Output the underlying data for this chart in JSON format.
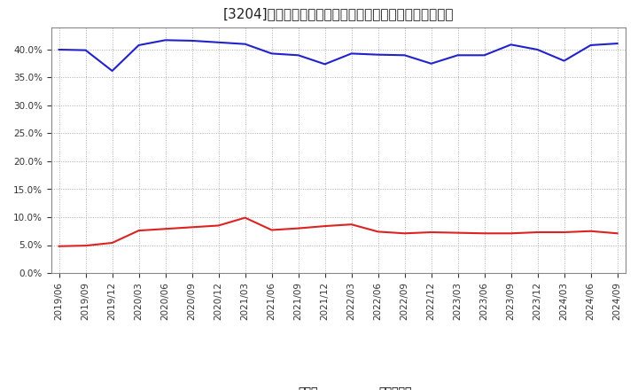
{
  "title": "[3204]　現鄲金、有利子負債の総資産に対する比率の推移",
  "x_labels": [
    "2019/06",
    "2019/09",
    "2019/12",
    "2020/03",
    "2020/06",
    "2020/09",
    "2020/12",
    "2021/03",
    "2021/06",
    "2021/09",
    "2021/12",
    "2022/03",
    "2022/06",
    "2022/09",
    "2022/12",
    "2023/03",
    "2023/06",
    "2023/09",
    "2023/12",
    "2024/03",
    "2024/06",
    "2024/09"
  ],
  "cash": [
    0.048,
    0.049,
    0.054,
    0.076,
    0.079,
    0.082,
    0.085,
    0.099,
    0.077,
    0.08,
    0.084,
    0.087,
    0.074,
    0.071,
    0.073,
    0.072,
    0.071,
    0.071,
    0.073,
    0.073,
    0.075,
    0.071
  ],
  "debt": [
    0.4,
    0.399,
    0.362,
    0.408,
    0.417,
    0.416,
    0.413,
    0.41,
    0.393,
    0.39,
    0.374,
    0.393,
    0.391,
    0.39,
    0.375,
    0.39,
    0.39,
    0.409,
    0.4,
    0.38,
    0.408,
    0.411
  ],
  "cash_color": "#dd2222",
  "debt_color": "#2222cc",
  "background_color": "#ffffff",
  "plot_bg_color": "#ffffff",
  "grid_color": "#aaaaaa",
  "ylim": [
    0.0,
    0.44
  ],
  "yticks": [
    0.0,
    0.05,
    0.1,
    0.15,
    0.2,
    0.25,
    0.3,
    0.35,
    0.4
  ],
  "legend_cash": "現鄲金",
  "legend_debt": "有利子負債",
  "title_fontsize": 11,
  "tick_fontsize": 7.5,
  "legend_fontsize": 9,
  "line_width": 1.5
}
